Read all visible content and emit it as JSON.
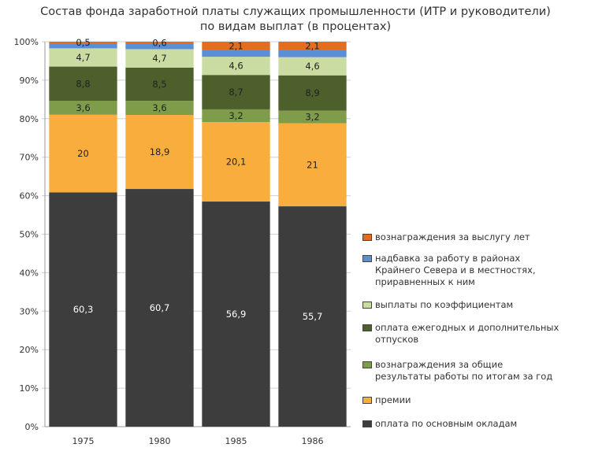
{
  "chart_data": {
    "type": "bar",
    "stacked": "percent",
    "title": "Состав фонда заработной платы служащих промышленности (ИТР и руководители)\nпо видам выплат (в процентах)",
    "xlabel": "",
    "ylabel": "",
    "categories": [
      "1975",
      "1980",
      "1985",
      "1986"
    ],
    "ylim": [
      0,
      100
    ],
    "yticks": [
      "0%",
      "10%",
      "20%",
      "30%",
      "40%",
      "50%",
      "60%",
      "70%",
      "80%",
      "90%",
      "100%"
    ],
    "grid": true,
    "legend_placement": "right",
    "series": [
      {
        "name": "оплата по основным окладам",
        "color": "#3d3d3d",
        "values": [
          60.3,
          60.7,
          56.9,
          55.7
        ],
        "labels": [
          "60,3",
          "60,7",
          "56,9",
          "55,7"
        ],
        "label_color": "#ffffff"
      },
      {
        "name": "премии",
        "color": "#f9ad3d",
        "values": [
          20,
          18.9,
          20.1,
          21
        ],
        "labels": [
          "20",
          "18,9",
          "20,1",
          "21"
        ],
        "label_color": "#222222"
      },
      {
        "name": "вознаграждения за общие\nрезультаты работы по итогам за год",
        "color": "#7e9c4a",
        "values": [
          3.6,
          3.6,
          3.2,
          3.2
        ],
        "labels": [
          "3,6",
          "3,6",
          "3,2",
          "3,2"
        ],
        "label_color": "#222222"
      },
      {
        "name": "оплата ежегодных и дополнительных\nотпусков",
        "color": "#4d5f2b",
        "values": [
          8.8,
          8.5,
          8.7,
          8.9
        ],
        "labels": [
          "8,8",
          "8,5",
          "8,7",
          "8,9"
        ],
        "label_color": "#222222"
      },
      {
        "name": "выплаты по коэффициентам",
        "color": "#cadca1",
        "values": [
          4.7,
          4.7,
          4.6,
          4.6
        ],
        "labels": [
          "4,7",
          "4,7",
          "4,6",
          "4,6"
        ],
        "label_color": "#222222"
      },
      {
        "name": "надбавка за работу в районах\nКрайнего Севера и в местностях,\nприравненных к ним",
        "color": "#5a8fd6",
        "values": [
          1.2,
          1.3,
          1.7,
          1.8
        ],
        "labels": [
          "",
          "",
          "",
          ""
        ],
        "label_color": "#222222"
      },
      {
        "name": "вознаграждения за выслугу лет",
        "color": "#e46c1a",
        "values": [
          0.5,
          0.6,
          2.1,
          2.1
        ],
        "labels": [
          "0,5",
          "0,6",
          "2,1",
          "2,1"
        ],
        "label_color": "#222222"
      }
    ]
  }
}
